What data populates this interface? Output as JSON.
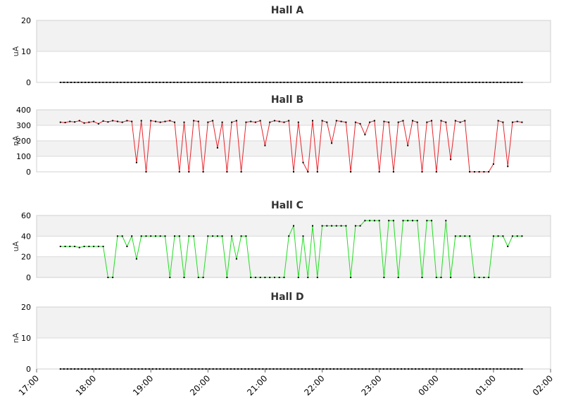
{
  "x_axis": {
    "ticks": [
      "17:00",
      "18:00",
      "19:00",
      "20:00",
      "21:00",
      "22:00",
      "23:00",
      "00:00",
      "01:00",
      "02:00"
    ],
    "range_hours": [
      17,
      26
    ]
  },
  "chart_data": [
    {
      "type": "line",
      "title": "Hall A",
      "ylabel": "uA",
      "ylim": [
        0,
        20
      ],
      "yticks": [
        "0",
        "10",
        "20"
      ],
      "color": "#000000",
      "series": [
        {
          "flat": true,
          "x_range": [
            "17:25",
            "01:30"
          ],
          "value": 0,
          "count": 131
        }
      ]
    },
    {
      "type": "line",
      "title": "Hall B",
      "ylabel": "nA",
      "ylim": [
        0,
        400
      ],
      "yticks": [
        "0",
        "100",
        "200",
        "300",
        "400"
      ],
      "color": "#e8242b",
      "series": [
        {
          "x": [
            "17:25",
            "17:30",
            "17:35",
            "17:40",
            "17:45",
            "17:50",
            "17:55",
            "18:00",
            "18:05",
            "18:10",
            "18:15",
            "18:20",
            "18:25",
            "18:30",
            "18:35",
            "18:40",
            "18:45",
            "18:50",
            "18:55",
            "19:00",
            "19:05",
            "19:10",
            "19:15",
            "19:20",
            "19:25",
            "19:30",
            "19:35",
            "19:40",
            "19:45",
            "19:50",
            "19:55",
            "20:00",
            "20:05",
            "20:10",
            "20:15",
            "20:20",
            "20:25",
            "20:30",
            "20:35",
            "20:40",
            "20:45",
            "20:50",
            "20:55",
            "21:00",
            "21:05",
            "21:10",
            "21:15",
            "21:20",
            "21:25",
            "21:30",
            "21:35",
            "21:40",
            "21:45",
            "21:50",
            "21:55",
            "22:00",
            "22:05",
            "22:10",
            "22:15",
            "22:20",
            "22:25",
            "22:30",
            "22:35",
            "22:40",
            "22:45",
            "22:50",
            "22:55",
            "23:00",
            "23:05",
            "23:10",
            "23:15",
            "23:20",
            "23:25",
            "23:30",
            "23:35",
            "23:40",
            "23:45",
            "23:50",
            "23:55",
            "00:00",
            "00:05",
            "00:10",
            "00:15",
            "00:20",
            "00:25",
            "00:30",
            "00:35",
            "00:40",
            "00:45",
            "00:50",
            "00:55",
            "01:00",
            "01:05",
            "01:10",
            "01:15",
            "01:20",
            "01:25",
            "01:30"
          ],
          "y": [
            320,
            318,
            325,
            322,
            330,
            315,
            320,
            325,
            310,
            328,
            322,
            330,
            325,
            320,
            330,
            325,
            60,
            330,
            0,
            330,
            325,
            320,
            325,
            330,
            320,
            0,
            320,
            0,
            330,
            325,
            0,
            320,
            330,
            155,
            320,
            0,
            320,
            330,
            0,
            320,
            325,
            320,
            330,
            170,
            320,
            330,
            325,
            320,
            330,
            0,
            320,
            60,
            0,
            330,
            0,
            330,
            320,
            185,
            330,
            325,
            320,
            0,
            320,
            310,
            240,
            320,
            330,
            0,
            325,
            320,
            0,
            320,
            330,
            170,
            330,
            320,
            0,
            320,
            330,
            0,
            330,
            320,
            80,
            330,
            320,
            330,
            0,
            0,
            0,
            0,
            0,
            50,
            330,
            320,
            35,
            320,
            325,
            320
          ]
        }
      ]
    },
    {
      "type": "line",
      "title": "Hall C",
      "ylabel": "uA",
      "ylim": [
        0,
        60
      ],
      "yticks": [
        "0",
        "20",
        "40",
        "60"
      ],
      "color": "#22dd22",
      "series": [
        {
          "x": [
            "17:25",
            "17:30",
            "17:35",
            "17:40",
            "17:45",
            "17:50",
            "17:55",
            "18:00",
            "18:05",
            "18:10",
            "18:15",
            "18:20",
            "18:25",
            "18:30",
            "18:35",
            "18:40",
            "18:45",
            "18:50",
            "18:55",
            "19:00",
            "19:05",
            "19:10",
            "19:15",
            "19:20",
            "19:25",
            "19:30",
            "19:35",
            "19:40",
            "19:45",
            "19:50",
            "19:55",
            "20:00",
            "20:05",
            "20:10",
            "20:15",
            "20:20",
            "20:25",
            "20:30",
            "20:35",
            "20:40",
            "20:45",
            "20:50",
            "20:55",
            "21:00",
            "21:05",
            "21:10",
            "21:15",
            "21:20",
            "21:25",
            "21:30",
            "21:35",
            "21:40",
            "21:45",
            "21:50",
            "21:55",
            "22:00",
            "22:05",
            "22:10",
            "22:15",
            "22:20",
            "22:25",
            "22:30",
            "22:35",
            "22:40",
            "22:45",
            "22:50",
            "22:55",
            "23:00",
            "23:05",
            "23:10",
            "23:15",
            "23:20",
            "23:25",
            "23:30",
            "23:35",
            "23:40",
            "23:45",
            "23:50",
            "23:55",
            "00:00",
            "00:05",
            "00:10",
            "00:15",
            "00:20",
            "00:25",
            "00:30",
            "00:35",
            "00:40",
            "00:45",
            "00:50",
            "00:55",
            "01:00",
            "01:05",
            "01:10",
            "01:15",
            "01:20",
            "01:25",
            "01:30"
          ],
          "y": [
            30,
            30,
            30,
            30,
            29,
            30,
            30,
            30,
            30,
            30,
            0,
            0,
            40,
            40,
            30,
            40,
            18,
            40,
            40,
            40,
            40,
            40,
            40,
            0,
            40,
            40,
            0,
            40,
            40,
            0,
            0,
            40,
            40,
            40,
            40,
            0,
            40,
            18,
            40,
            40,
            0,
            0,
            0,
            0,
            0,
            0,
            0,
            0,
            40,
            50,
            0,
            40,
            0,
            50,
            0,
            50,
            50,
            50,
            50,
            50,
            50,
            0,
            50,
            50,
            55,
            55,
            55,
            55,
            0,
            55,
            55,
            0,
            55,
            55,
            55,
            55,
            0,
            55,
            55,
            0,
            0,
            55,
            0,
            40,
            40,
            40,
            40,
            0,
            0,
            0,
            0,
            40,
            40,
            40,
            30,
            40,
            40,
            40
          ]
        }
      ]
    },
    {
      "type": "line",
      "title": "Hall D",
      "ylabel": "nA",
      "ylim": [
        0,
        20
      ],
      "yticks": [
        "0",
        "10",
        "20"
      ],
      "color": "#000000",
      "series": [
        {
          "flat": true,
          "x_range": [
            "17:25",
            "01:30"
          ],
          "value": 0,
          "count": 131
        }
      ]
    }
  ]
}
